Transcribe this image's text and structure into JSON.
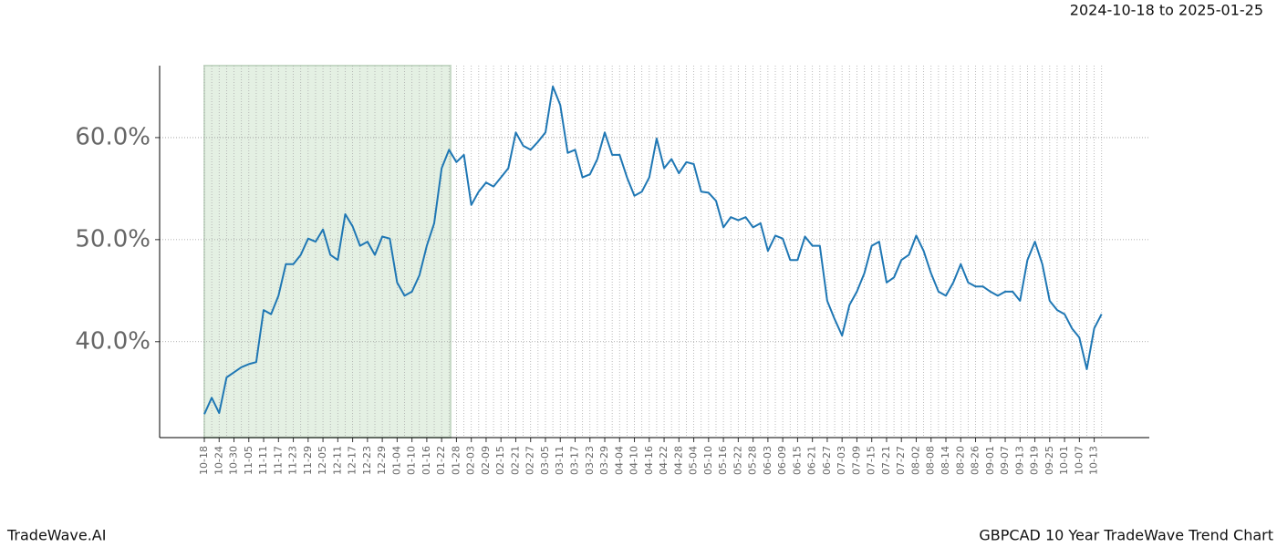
{
  "header": {
    "date_range": "2024-10-18 to 2025-01-25"
  },
  "footer": {
    "brand": "TradeWave.AI",
    "chart_name": "GBPCAD 10 Year TradeWave Trend Chart"
  },
  "chart_data": {
    "type": "line",
    "categories": [
      "10-18",
      null,
      "10-24",
      null,
      "10-30",
      null,
      "11-05",
      null,
      "11-11",
      null,
      "11-17",
      null,
      "11-23",
      null,
      "11-29",
      null,
      "12-05",
      null,
      "12-11",
      null,
      "12-17",
      null,
      "12-23",
      null,
      "12-29",
      null,
      "01-04",
      null,
      "01-10",
      null,
      "01-16",
      null,
      "01-22",
      null,
      "01-28",
      null,
      "02-03",
      null,
      "02-09",
      null,
      "02-15",
      null,
      "02-21",
      null,
      "02-27",
      null,
      "03-05",
      null,
      "03-11",
      null,
      "03-17",
      null,
      "03-23",
      null,
      "03-29",
      null,
      "04-04",
      null,
      "04-10",
      null,
      "04-16",
      null,
      "04-22",
      null,
      "04-28",
      null,
      "05-04",
      null,
      "05-10",
      null,
      "05-16",
      null,
      "05-22",
      null,
      "05-28",
      null,
      "06-03",
      null,
      "06-09",
      null,
      "06-15",
      null,
      "06-21",
      null,
      "06-27",
      null,
      "07-03",
      null,
      "07-09",
      null,
      "07-15",
      null,
      "07-21",
      null,
      "07-27",
      null,
      "08-02",
      null,
      "08-08",
      null,
      "08-14",
      null,
      "08-20",
      null,
      "08-26",
      null,
      "09-01",
      null,
      "09-07",
      null,
      "09-13",
      null,
      "09-19",
      null,
      "09-25",
      null,
      "10-01",
      null,
      "10-07",
      null,
      "10-13",
      null
    ],
    "series": [
      {
        "color": "#1f77b4",
        "values": [
          32.9,
          34.5,
          33.0,
          36.5,
          37.0,
          37.5,
          37.8,
          38.0,
          43.1,
          42.7,
          44.5,
          47.6,
          47.6,
          48.5,
          50.1,
          49.8,
          51.0,
          48.5,
          48.0,
          52.5,
          51.3,
          49.4,
          49.8,
          48.5,
          50.3,
          50.1,
          45.8,
          44.5,
          44.9,
          46.5,
          49.4,
          51.6,
          57.0,
          58.8,
          57.6,
          58.3,
          53.4,
          54.7,
          55.6,
          55.2,
          56.1,
          57.0,
          60.5,
          59.2,
          58.8,
          59.6,
          60.5,
          65.0,
          63.2,
          58.5,
          58.8,
          56.1,
          56.4,
          57.9,
          60.5,
          58.3,
          58.3,
          56.1,
          54.3,
          54.7,
          56.1,
          59.9,
          57.0,
          57.9,
          56.5,
          57.6,
          57.4,
          54.7,
          54.6,
          53.8,
          51.2,
          52.2,
          51.9,
          52.2,
          51.2,
          51.6,
          48.9,
          50.4,
          50.1,
          48.0,
          48.0,
          50.3,
          49.4,
          49.4,
          44.0,
          42.2,
          40.6,
          43.6,
          44.9,
          46.7,
          49.4,
          49.8,
          45.8,
          46.3,
          48.0,
          48.5,
          50.4,
          48.9,
          46.7,
          44.9,
          44.5,
          45.8,
          47.6,
          45.8,
          45.4,
          45.4,
          44.9,
          44.5,
          44.9,
          44.9,
          44.0,
          48.0,
          49.8,
          47.6,
          44.0,
          43.1,
          42.7,
          41.3,
          40.4,
          37.3,
          41.3,
          42.7
        ]
      }
    ],
    "ylim": [
      30.6,
      67.05
    ],
    "yticks": [
      {
        "value": 40,
        "label": "40.0%"
      },
      {
        "value": 50,
        "label": "50.0%"
      },
      {
        "value": 60,
        "label": "60.0%"
      }
    ],
    "grid": true,
    "shade": {
      "from": 0,
      "to": 33.2,
      "color": "#e4f0e3"
    }
  }
}
